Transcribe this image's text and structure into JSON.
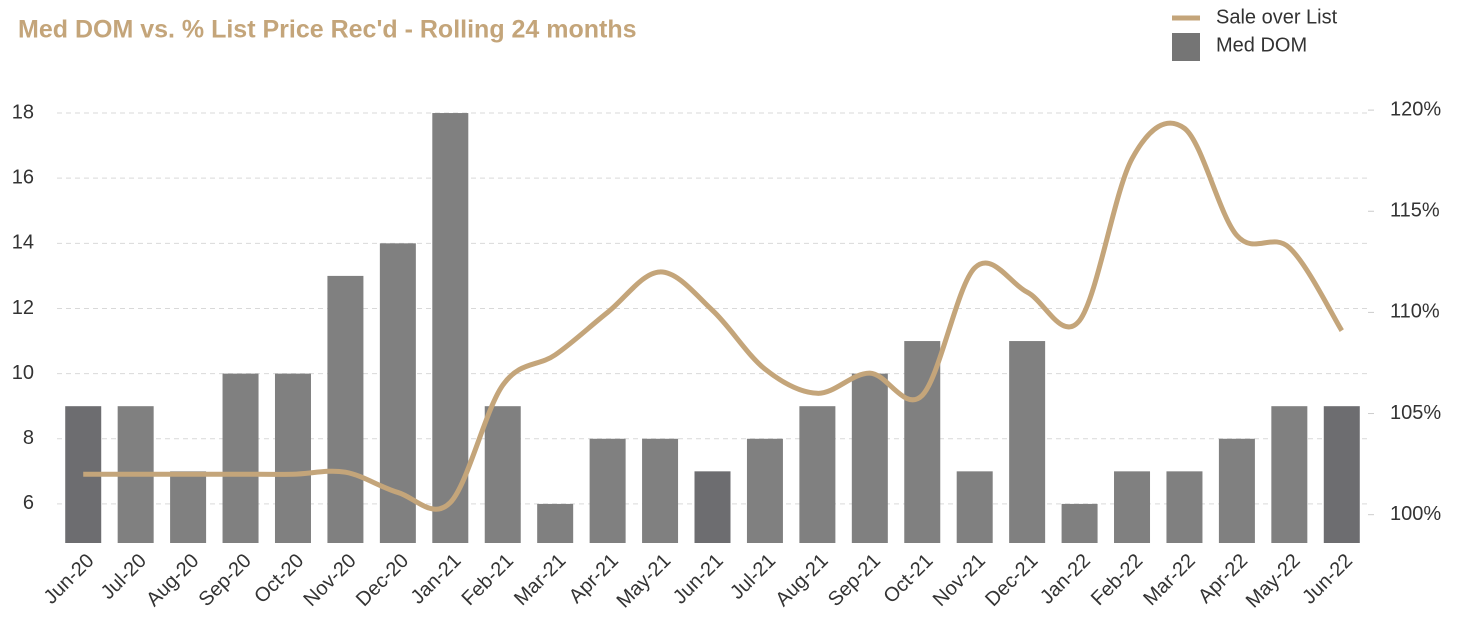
{
  "chart_data": {
    "type": "bar_line",
    "title": "Med DOM  vs. % List Price Rec'd - Rolling 24 months",
    "title_color": "#c4a57a",
    "categories": [
      "Jun-20",
      "Jul-20",
      "Aug-20",
      "Sep-20",
      "Oct-20",
      "Nov-20",
      "Dec-20",
      "Jan-21",
      "Feb-21",
      "Mar-21",
      "Apr-21",
      "May-21",
      "Jun-21",
      "Jul-21",
      "Aug-21",
      "Sep-21",
      "Oct-21",
      "Nov-21",
      "Dec-21",
      "Jan-22",
      "Feb-22",
      "Mar-22",
      "Apr-22",
      "May-22",
      "Jun-22"
    ],
    "series": [
      {
        "name": "Sale over List",
        "type": "line",
        "axis": "y2",
        "color": "#c4a57a",
        "values": [
          102,
          102,
          102,
          102,
          102,
          102.1,
          101.1,
          100.6,
          106.4,
          107.9,
          110,
          112,
          110.1,
          107.2,
          106,
          107,
          105.9,
          112.2,
          111,
          109.6,
          117.6,
          119.1,
          113.8,
          113.2,
          109.1
        ]
      },
      {
        "name": "Med DOM",
        "type": "bar",
        "color": "#757575",
        "bar_colors": [
          "#6d6d70",
          "#808080",
          "#808080",
          "#808080",
          "#808080",
          "#808080",
          "#808080",
          "#808080",
          "#808080",
          "#808080",
          "#808080",
          "#808080",
          "#6d6d70",
          "#808080",
          "#808080",
          "#808080",
          "#808080",
          "#808080",
          "#808080",
          "#808080",
          "#808080",
          "#808080",
          "#808080",
          "#808080",
          "#6d6d70"
        ],
        "values": [
          9,
          9,
          7,
          10,
          10,
          13,
          14,
          18,
          9,
          6,
          8,
          8,
          7,
          8,
          9,
          10,
          11,
          7,
          11,
          6,
          7,
          7,
          8,
          9,
          9
        ]
      }
    ],
    "ylim": [
      4.8,
      18.4
    ],
    "yticks": [
      6,
      8,
      10,
      12,
      14,
      16,
      18
    ],
    "y2lim": [
      98.6,
      120.5
    ],
    "y2ticks": [
      {
        "value": 100,
        "label": "100%"
      },
      {
        "value": 105,
        "label": "105%"
      },
      {
        "value": 110,
        "label": "110%"
      },
      {
        "value": 115,
        "label": "115%"
      },
      {
        "value": 120,
        "label": "120%"
      }
    ],
    "grid": true,
    "legend": "top-right"
  }
}
